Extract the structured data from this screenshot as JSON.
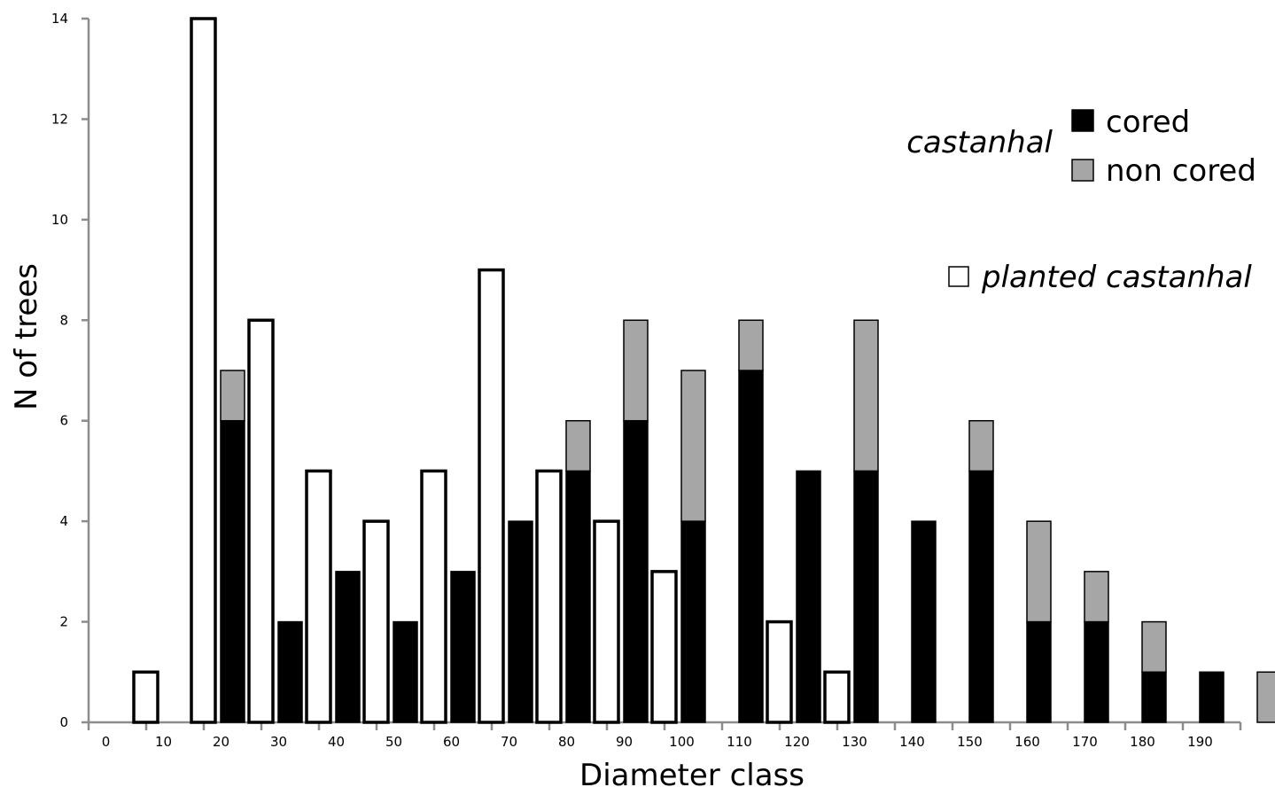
{
  "chart_data": {
    "type": "bar",
    "subtype": "grouped-stacked",
    "xlabel": "Diameter class",
    "ylabel": "N of trees",
    "ylim": [
      0,
      14
    ],
    "yticks": [
      0,
      2,
      4,
      6,
      8,
      10,
      12,
      14
    ],
    "categories": [
      "0",
      "10",
      "20",
      "30",
      "40",
      "50",
      "60",
      "70",
      "80",
      "90",
      "100",
      "110",
      "120",
      "130",
      "140",
      "150",
      "160",
      "170",
      "180",
      "190"
    ],
    "grid": false,
    "legend_position": "top-right",
    "legend": {
      "group_label": "castanhal",
      "cored_label": "cored",
      "noncored_label": "non cored",
      "planted_label": "planted castanhal"
    },
    "colors": {
      "cored": "#000000",
      "non_cored": "#a6a6a6",
      "planted": "#ffffff",
      "axis": "#8c8c8c"
    },
    "series": [
      {
        "name": "planted castanhal",
        "stack": "planted",
        "values": [
          1,
          14,
          8,
          5,
          4,
          5,
          9,
          5,
          4,
          3,
          null,
          2,
          1,
          null,
          null,
          null,
          null,
          null,
          null,
          null
        ]
      },
      {
        "name": "cored",
        "stack": "castanhal",
        "values": [
          null,
          6,
          2,
          3,
          2,
          3,
          4,
          5,
          6,
          4,
          7,
          5,
          5,
          4,
          5,
          2,
          2,
          1,
          1,
          null
        ]
      },
      {
        "name": "non cored",
        "stack": "castanhal",
        "values": [
          null,
          1,
          0,
          0,
          0,
          0,
          0,
          1,
          2,
          3,
          1,
          0,
          3,
          0,
          1,
          2,
          1,
          1,
          0,
          1
        ]
      }
    ]
  }
}
